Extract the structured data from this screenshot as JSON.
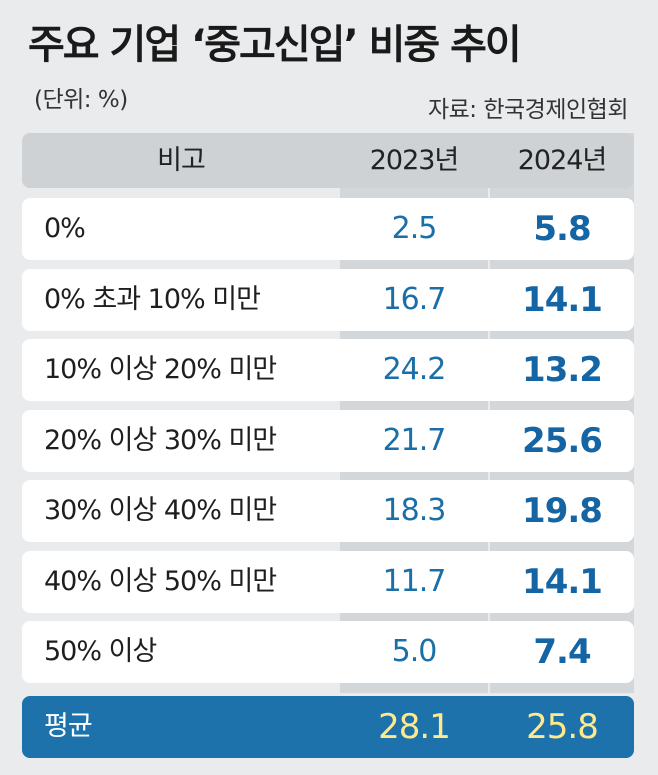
{
  "title": "주요 기업 ‘중고신입’ 비중 추이",
  "unit": "(단위: %)",
  "source": "자료: 한국경제인협회",
  "chart_data": {
    "type": "table",
    "columns": [
      "비고",
      "2023년",
      "2024년"
    ],
    "rows": [
      {
        "label": "0%",
        "y2023": "2.5",
        "y2024": "5.8"
      },
      {
        "label": "0% 초과 10% 미만",
        "y2023": "16.7",
        "y2024": "14.1"
      },
      {
        "label": "10% 이상 20% 미만",
        "y2023": "24.2",
        "y2024": "13.2"
      },
      {
        "label": "20% 이상 30% 미만",
        "y2023": "21.7",
        "y2024": "25.6"
      },
      {
        "label": "30% 이상 40% 미만",
        "y2023": "18.3",
        "y2024": "19.8"
      },
      {
        "label": "40% 이상 50% 미만",
        "y2023": "11.7",
        "y2024": "14.1"
      },
      {
        "label": "50% 이상",
        "y2023": "5.0",
        "y2024": "7.4"
      }
    ],
    "average": {
      "label": "평균",
      "y2023": "28.1",
      "y2024": "25.8"
    }
  },
  "colors": {
    "accent_blue": "#1d72ab",
    "value_blue": "#1b6fa8",
    "average_value": "#ffe98a",
    "background": "#e9ebed"
  }
}
